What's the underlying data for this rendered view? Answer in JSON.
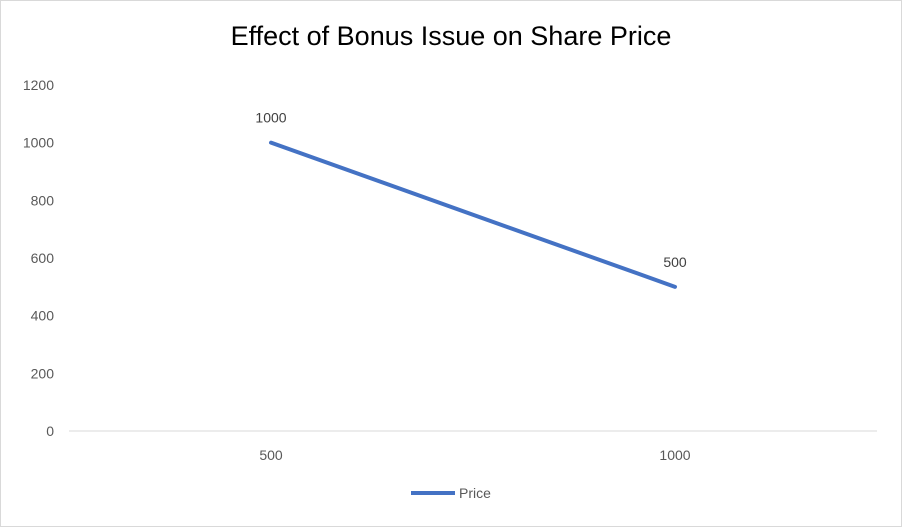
{
  "chart_data": {
    "type": "line",
    "title": "Effect of Bonus Issue on Share Price",
    "categories": [
      "500",
      "1000"
    ],
    "series": [
      {
        "name": "Price",
        "values": [
          1000,
          500
        ],
        "color": "#4472c4"
      }
    ],
    "ylim": [
      0,
      1200
    ],
    "yticks": [
      0,
      200,
      400,
      600,
      800,
      1000,
      1200
    ],
    "grid": false,
    "legend": "bottom",
    "data_labels": true
  }
}
